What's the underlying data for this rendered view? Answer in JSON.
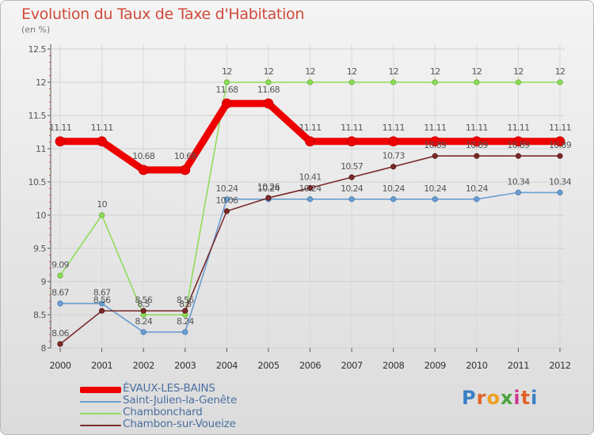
{
  "title": "Evolution du Taux de Taxe d'Habitation",
  "subtitle": "(en %)",
  "logo": {
    "text": "Proxiti",
    "letter_colors": [
      "#3a7fc4",
      "#e2622a",
      "#f0a020",
      "#4aa23a",
      "#c93b8e",
      "#e2622a",
      "#3a7fc4"
    ]
  },
  "chart_data": {
    "type": "line",
    "x": [
      "2000",
      "2001",
      "2002",
      "2003",
      "2004",
      "2005",
      "2006",
      "2007",
      "2008",
      "2009",
      "2010",
      "2011",
      "2012"
    ],
    "ylim": [
      8,
      12.5
    ],
    "yticks": [
      "8",
      "8.5",
      "9",
      "9.5",
      "10",
      "10.5",
      "11",
      "11.5",
      "12",
      "12.5"
    ],
    "series": [
      {
        "name": "ÉVAUX-LES-BAINS",
        "color": "#ee0000",
        "values": [
          11.11,
          11.11,
          10.68,
          10.68,
          11.68,
          11.68,
          11.11,
          11.11,
          11.11,
          11.11,
          11.11,
          11.11,
          11.11
        ],
        "labels": [
          "11.11",
          "11.11",
          "10.68",
          "10.68",
          "11.68",
          "11.68",
          "11.11",
          "11.11",
          "11.11",
          "11.11",
          "11.11",
          "11.11",
          "11.11"
        ]
      },
      {
        "name": "Saint-Julien-la-Genête",
        "color": "#6b9ed0",
        "values": [
          8.67,
          8.67,
          8.24,
          8.24,
          10.24,
          10.24,
          10.24,
          10.24,
          10.24,
          10.24,
          10.24,
          10.34,
          10.34
        ],
        "labels": [
          "8.67",
          "8.67",
          "8.24",
          "8.24",
          "10.24",
          "10.24",
          "10.24",
          "10.24",
          "10.24",
          "10.24",
          "10.24",
          "10.34",
          "10.34"
        ]
      },
      {
        "name": "Chambonchard",
        "color": "#8edc5a",
        "values": [
          9.09,
          10,
          8.5,
          8.5,
          12,
          12,
          12,
          12,
          12,
          12,
          12,
          12,
          12
        ],
        "labels": [
          "9.09",
          "10",
          "8.5",
          "8.5",
          "12",
          "12",
          "12",
          "12",
          "12",
          "12",
          "12",
          "12",
          "12"
        ]
      },
      {
        "name": "Chambon-sur-Voueize",
        "color": "#7a2a2a",
        "values": [
          8.06,
          8.56,
          8.56,
          8.56,
          10.06,
          10.26,
          10.41,
          10.57,
          10.73,
          10.89,
          10.89,
          10.89,
          10.89
        ],
        "labels": [
          "8.06",
          "8.56",
          "8.56",
          "8.56",
          "10.06",
          "10.26",
          "10.41",
          "10.57",
          "10.73",
          "10.89",
          "10.89",
          "10.89",
          "10.89"
        ]
      }
    ]
  }
}
